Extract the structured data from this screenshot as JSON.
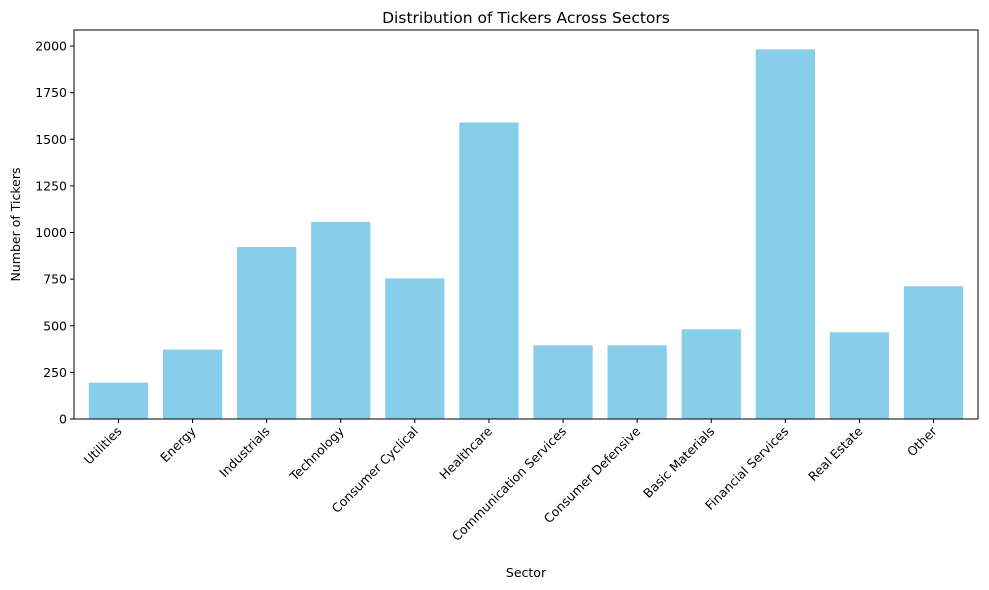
{
  "chart_data": {
    "type": "bar",
    "title": "Distribution of Tickers Across Sectors",
    "xlabel": "Sector",
    "ylabel": "Number of Tickers",
    "categories": [
      "Utilities",
      "Energy",
      "Industrials",
      "Technology",
      "Consumer Cyclical",
      "Healthcare",
      "Communication Services",
      "Consumer Defensive",
      "Basic Materials",
      "Financial Services",
      "Real Estate",
      "Other"
    ],
    "values": [
      195,
      372,
      922,
      1057,
      754,
      1590,
      395,
      395,
      481,
      1982,
      465,
      712
    ],
    "ylim": [
      0,
      2086
    ],
    "yticks": [
      0,
      250,
      500,
      750,
      1000,
      1250,
      1500,
      1750,
      2000
    ],
    "bar_color": "#87ceeb",
    "grid": false,
    "legend": "none"
  }
}
